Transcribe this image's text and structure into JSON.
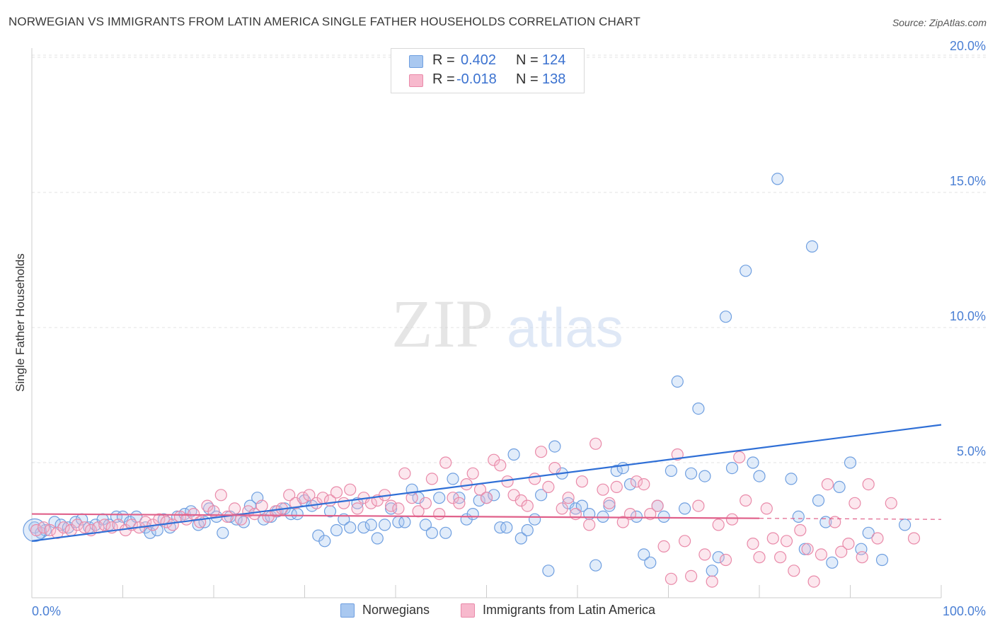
{
  "header": {
    "title": "NORWEGIAN VS IMMIGRANTS FROM LATIN AMERICA SINGLE FATHER HOUSEHOLDS CORRELATION CHART",
    "source": "Source: ZipAtlas.com"
  },
  "watermark": {
    "zip": "ZIP",
    "atlas": "atlas"
  },
  "legend": {
    "rows": [
      {
        "r_label": "R =",
        "r_value": "0.402",
        "n_label": "N =",
        "n_value": "124",
        "color": "#a9c8f0",
        "border": "#6f9fe0"
      },
      {
        "r_label": "R =",
        "r_value": "-0.018",
        "n_label": "N =",
        "n_value": "138",
        "color": "#f7b9cd",
        "border": "#e98aa9"
      }
    ]
  },
  "bottom_legend": {
    "items": [
      {
        "label": "Norwegians",
        "color": "#a9c8f0"
      },
      {
        "label": "Immigrants from Latin America",
        "color": "#f7b9cd"
      }
    ]
  },
  "chart_data": {
    "type": "scatter",
    "title": "NORWEGIAN VS IMMIGRANTS FROM LATIN AMERICA SINGLE FATHER HOUSEHOLDS CORRELATION CHART",
    "xlabel": "",
    "ylabel": "Single Father Households",
    "xlim": [
      0,
      100
    ],
    "ylim": [
      0,
      21
    ],
    "x_tick_labels": [
      "0.0%",
      "100.0%"
    ],
    "y_ticks": [
      5,
      10,
      15,
      20
    ],
    "y_tick_labels": [
      "5.0%",
      "10.0%",
      "15.0%",
      "20.0%"
    ],
    "grid": "horizontal dashed",
    "legend_position": "top-center",
    "series": [
      {
        "name": "Norwegians",
        "color": "#6f9fe0",
        "fill": "#a9c8f0",
        "line_color": "#2f6fd6",
        "trend": {
          "x0": 0,
          "y0": 2.1,
          "x1": 100,
          "y1": 6.4
        },
        "points": [
          [
            0.3,
            2.6
          ],
          [
            1.0,
            2.4
          ],
          [
            1.5,
            2.5
          ],
          [
            2.5,
            2.8
          ],
          [
            3.2,
            2.7
          ],
          [
            4.0,
            2.6
          ],
          [
            4.8,
            2.8
          ],
          [
            5.5,
            2.9
          ],
          [
            6.3,
            2.6
          ],
          [
            7.0,
            2.7
          ],
          [
            7.8,
            2.9
          ],
          [
            8.5,
            2.7
          ],
          [
            9.3,
            3.0
          ],
          [
            10.0,
            3.0
          ],
          [
            10.8,
            2.8
          ],
          [
            11.5,
            3.0
          ],
          [
            12.5,
            2.6
          ],
          [
            13.0,
            2.4
          ],
          [
            13.8,
            2.5
          ],
          [
            14.5,
            2.9
          ],
          [
            15.2,
            2.6
          ],
          [
            16.0,
            3.0
          ],
          [
            16.8,
            3.1
          ],
          [
            17.5,
            3.2
          ],
          [
            18.3,
            2.7
          ],
          [
            19.0,
            2.8
          ],
          [
            19.5,
            3.3
          ],
          [
            20.3,
            3.0
          ],
          [
            21.0,
            2.4
          ],
          [
            21.8,
            3.0
          ],
          [
            22.5,
            2.9
          ],
          [
            23.3,
            2.8
          ],
          [
            24.0,
            3.4
          ],
          [
            24.8,
            3.7
          ],
          [
            25.5,
            2.9
          ],
          [
            26.3,
            3.0
          ],
          [
            27.0,
            3.2
          ],
          [
            27.8,
            3.3
          ],
          [
            28.5,
            3.1
          ],
          [
            29.2,
            3.1
          ],
          [
            30.0,
            3.6
          ],
          [
            30.8,
            3.4
          ],
          [
            31.5,
            2.3
          ],
          [
            32.2,
            2.1
          ],
          [
            32.8,
            3.2
          ],
          [
            33.5,
            2.5
          ],
          [
            34.3,
            2.9
          ],
          [
            35.0,
            2.6
          ],
          [
            35.8,
            3.5
          ],
          [
            36.5,
            2.6
          ],
          [
            37.3,
            2.7
          ],
          [
            38.0,
            2.2
          ],
          [
            38.8,
            2.7
          ],
          [
            39.5,
            3.3
          ],
          [
            40.3,
            2.8
          ],
          [
            41.0,
            2.8
          ],
          [
            41.8,
            4.0
          ],
          [
            42.5,
            3.7
          ],
          [
            43.3,
            2.7
          ],
          [
            44.0,
            2.4
          ],
          [
            44.8,
            3.7
          ],
          [
            45.5,
            2.4
          ],
          [
            46.3,
            4.4
          ],
          [
            47.0,
            3.7
          ],
          [
            47.8,
            2.9
          ],
          [
            48.5,
            3.1
          ],
          [
            49.2,
            3.6
          ],
          [
            50.0,
            3.7
          ],
          [
            50.8,
            3.8
          ],
          [
            51.5,
            2.6
          ],
          [
            52.2,
            2.6
          ],
          [
            53.0,
            5.3
          ],
          [
            53.8,
            2.2
          ],
          [
            54.5,
            2.5
          ],
          [
            55.3,
            2.9
          ],
          [
            56.0,
            3.8
          ],
          [
            56.8,
            1.0
          ],
          [
            57.5,
            5.6
          ],
          [
            58.3,
            4.6
          ],
          [
            59.0,
            3.5
          ],
          [
            59.8,
            3.3
          ],
          [
            60.5,
            3.4
          ],
          [
            61.3,
            3.1
          ],
          [
            62.0,
            1.2
          ],
          [
            62.8,
            3.0
          ],
          [
            63.5,
            3.4
          ],
          [
            64.3,
            4.7
          ],
          [
            65.0,
            4.8
          ],
          [
            65.8,
            4.2
          ],
          [
            66.5,
            3.0
          ],
          [
            67.3,
            1.6
          ],
          [
            68.0,
            1.3
          ],
          [
            68.8,
            3.4
          ],
          [
            69.5,
            3.0
          ],
          [
            70.3,
            4.7
          ],
          [
            71.0,
            8.0
          ],
          [
            71.8,
            3.3
          ],
          [
            72.5,
            4.6
          ],
          [
            73.3,
            7.0
          ],
          [
            74.0,
            4.5
          ],
          [
            74.8,
            1.0
          ],
          [
            75.5,
            1.5
          ],
          [
            76.3,
            10.4
          ],
          [
            77.0,
            4.8
          ],
          [
            78.5,
            12.1
          ],
          [
            79.3,
            5.0
          ],
          [
            80.0,
            4.5
          ],
          [
            82.0,
            15.5
          ],
          [
            83.5,
            4.4
          ],
          [
            84.3,
            3.0
          ],
          [
            85.0,
            1.8
          ],
          [
            85.8,
            13.0
          ],
          [
            86.5,
            3.6
          ],
          [
            87.3,
            2.8
          ],
          [
            88.0,
            1.3
          ],
          [
            88.8,
            4.1
          ],
          [
            90.0,
            5.0
          ],
          [
            91.2,
            1.8
          ],
          [
            92.0,
            2.4
          ],
          [
            93.5,
            1.4
          ],
          [
            96.0,
            2.7
          ]
        ]
      },
      {
        "name": "Immigrants from Latin America",
        "color": "#e98aa9",
        "fill": "#f7b9cd",
        "line_color": "#e0608a",
        "trend": {
          "x0": 0,
          "y0": 3.1,
          "x1": 100,
          "y1": 2.9
        },
        "points": [
          [
            0.5,
            2.5
          ],
          [
            1.3,
            2.6
          ],
          [
            2.0,
            2.5
          ],
          [
            2.8,
            2.4
          ],
          [
            3.5,
            2.6
          ],
          [
            4.3,
            2.5
          ],
          [
            5.0,
            2.7
          ],
          [
            5.8,
            2.6
          ],
          [
            6.5,
            2.5
          ],
          [
            7.3,
            2.6
          ],
          [
            8.0,
            2.7
          ],
          [
            8.8,
            2.6
          ],
          [
            9.5,
            2.7
          ],
          [
            10.3,
            2.5
          ],
          [
            11.0,
            2.7
          ],
          [
            11.8,
            2.6
          ],
          [
            12.5,
            2.8
          ],
          [
            13.3,
            2.7
          ],
          [
            14.0,
            2.9
          ],
          [
            14.8,
            2.8
          ],
          [
            15.5,
            2.7
          ],
          [
            16.3,
            3.0
          ],
          [
            17.0,
            2.9
          ],
          [
            17.8,
            3.1
          ],
          [
            18.5,
            2.8
          ],
          [
            19.3,
            3.4
          ],
          [
            20.0,
            3.2
          ],
          [
            20.8,
            3.8
          ],
          [
            21.5,
            3.0
          ],
          [
            22.3,
            3.3
          ],
          [
            23.0,
            2.9
          ],
          [
            23.8,
            3.2
          ],
          [
            24.5,
            3.1
          ],
          [
            25.3,
            3.4
          ],
          [
            26.0,
            3.0
          ],
          [
            26.8,
            3.2
          ],
          [
            27.5,
            3.3
          ],
          [
            28.3,
            3.8
          ],
          [
            29.0,
            3.5
          ],
          [
            29.8,
            3.7
          ],
          [
            30.5,
            3.8
          ],
          [
            31.3,
            3.5
          ],
          [
            32.0,
            3.7
          ],
          [
            32.8,
            3.6
          ],
          [
            33.5,
            3.9
          ],
          [
            34.3,
            3.5
          ],
          [
            35.0,
            4.0
          ],
          [
            35.8,
            3.3
          ],
          [
            36.5,
            3.7
          ],
          [
            37.3,
            3.5
          ],
          [
            38.0,
            3.6
          ],
          [
            38.8,
            3.8
          ],
          [
            39.5,
            3.4
          ],
          [
            40.3,
            3.3
          ],
          [
            41.0,
            4.6
          ],
          [
            41.8,
            3.7
          ],
          [
            42.5,
            3.2
          ],
          [
            43.3,
            3.5
          ],
          [
            44.0,
            4.4
          ],
          [
            44.8,
            3.1
          ],
          [
            45.5,
            5.0
          ],
          [
            46.3,
            3.7
          ],
          [
            47.0,
            3.5
          ],
          [
            47.8,
            4.2
          ],
          [
            48.5,
            4.6
          ],
          [
            49.3,
            4.0
          ],
          [
            50.0,
            3.7
          ],
          [
            50.8,
            5.1
          ],
          [
            51.5,
            4.9
          ],
          [
            52.3,
            4.3
          ],
          [
            53.0,
            3.8
          ],
          [
            53.8,
            3.6
          ],
          [
            54.5,
            3.4
          ],
          [
            55.3,
            4.4
          ],
          [
            56.0,
            5.4
          ],
          [
            56.8,
            4.1
          ],
          [
            57.5,
            4.8
          ],
          [
            58.3,
            3.3
          ],
          [
            59.0,
            3.7
          ],
          [
            59.8,
            3.1
          ],
          [
            60.5,
            4.3
          ],
          [
            61.3,
            2.7
          ],
          [
            62.0,
            5.7
          ],
          [
            62.8,
            4.0
          ],
          [
            63.5,
            3.5
          ],
          [
            64.3,
            4.1
          ],
          [
            65.0,
            2.8
          ],
          [
            65.8,
            3.1
          ],
          [
            66.5,
            4.3
          ],
          [
            67.3,
            4.2
          ],
          [
            68.0,
            3.1
          ],
          [
            68.8,
            3.4
          ],
          [
            69.5,
            1.9
          ],
          [
            70.3,
            0.7
          ],
          [
            71.0,
            5.3
          ],
          [
            71.8,
            2.1
          ],
          [
            72.5,
            0.8
          ],
          [
            73.3,
            3.4
          ],
          [
            74.0,
            1.6
          ],
          [
            74.8,
            0.6
          ],
          [
            75.5,
            2.7
          ],
          [
            76.3,
            1.4
          ],
          [
            77.0,
            2.9
          ],
          [
            77.8,
            5.2
          ],
          [
            78.5,
            3.6
          ],
          [
            79.3,
            2.0
          ],
          [
            80.0,
            1.5
          ],
          [
            80.8,
            3.3
          ],
          [
            81.5,
            2.2
          ],
          [
            82.3,
            1.5
          ],
          [
            83.0,
            2.1
          ],
          [
            83.8,
            1.0
          ],
          [
            84.5,
            2.5
          ],
          [
            85.3,
            1.8
          ],
          [
            86.0,
            0.6
          ],
          [
            86.8,
            1.6
          ],
          [
            87.5,
            4.2
          ],
          [
            88.3,
            2.8
          ],
          [
            89.0,
            1.7
          ],
          [
            89.8,
            2.0
          ],
          [
            90.5,
            3.5
          ],
          [
            91.3,
            1.5
          ],
          [
            92.0,
            4.2
          ],
          [
            93.0,
            2.2
          ],
          [
            94.5,
            3.5
          ],
          [
            97.0,
            2.2
          ]
        ]
      }
    ]
  }
}
